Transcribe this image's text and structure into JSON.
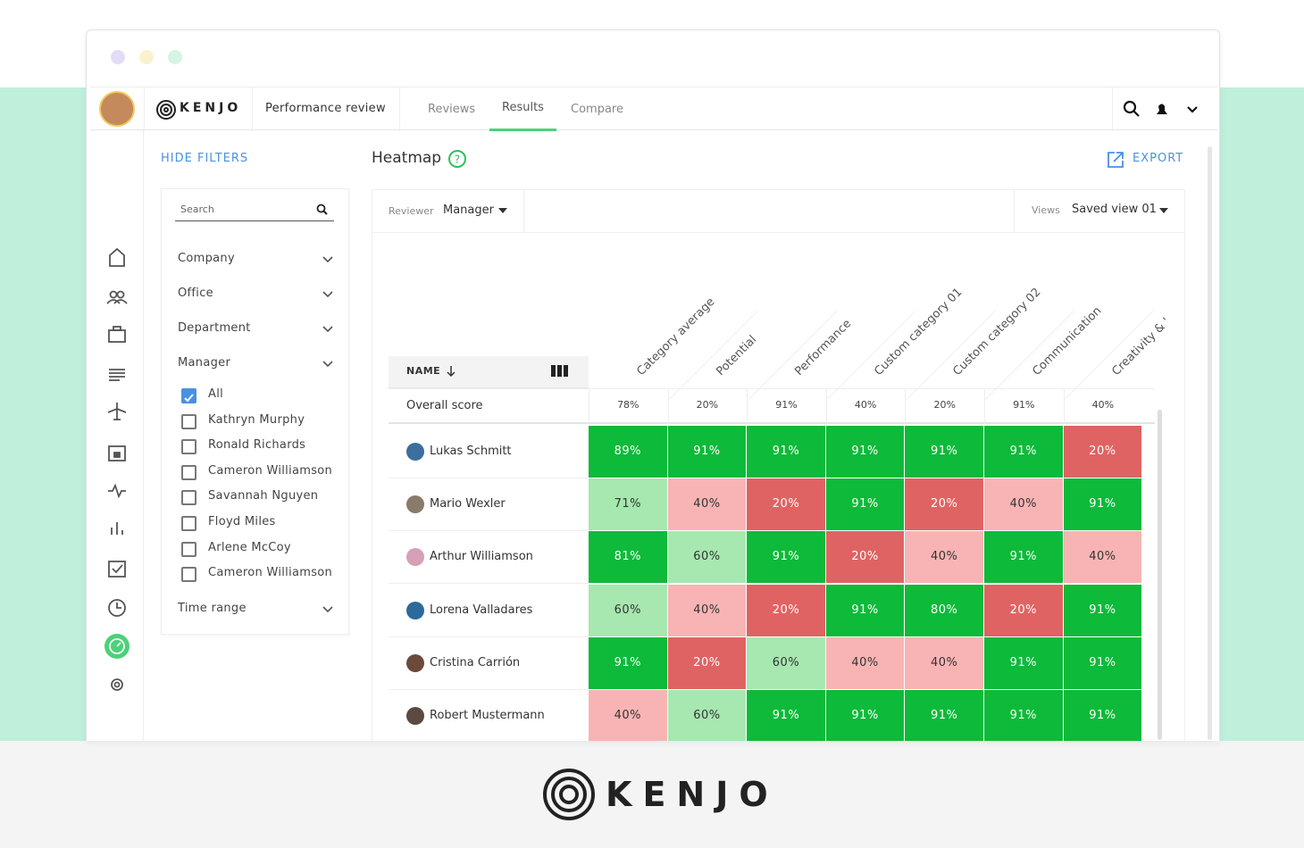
{
  "header": {
    "brand": "KENJO",
    "section": "Performance review",
    "tabs": [
      "Reviews",
      "Results",
      "Compare"
    ],
    "active_tab": 1
  },
  "filters": {
    "toggle": "HIDE FILTERS",
    "search": "Search",
    "groups": [
      "Company",
      "Office",
      "Department",
      "Manager"
    ],
    "manager_options": [
      {
        "label": "All",
        "checked": true
      },
      {
        "label": "Kathryn Murphy",
        "checked": false
      },
      {
        "label": "Ronald Richards",
        "checked": false
      },
      {
        "label": "Cameron Williamson",
        "checked": false
      },
      {
        "label": "Savannah Nguyen",
        "checked": false
      },
      {
        "label": "Floyd Miles",
        "checked": false
      },
      {
        "label": "Arlene McCoy",
        "checked": false
      },
      {
        "label": "Cameron Williamson",
        "checked": false
      }
    ],
    "time_range": "Time range"
  },
  "heatmap": {
    "title": "Heatmap",
    "export": "EXPORT",
    "reviewer_label": "Reviewer",
    "reviewer": "Manager",
    "views_label": "Views",
    "view": "Saved view 01",
    "name_header": "NAME",
    "columns": [
      "Category average",
      "Potential",
      "Performance",
      "Custom category 01",
      "Custom category 02",
      "Communication"
    ],
    "clipped_column": "Creativity & '",
    "overall": {
      "label": "Overall score",
      "values": [
        "78%",
        "20%",
        "91%",
        "40%",
        "20%",
        "91%",
        "40%"
      ]
    },
    "rows": [
      {
        "name": "Lukas Schmitt",
        "values": [
          "89%",
          "91%",
          "91%",
          "91%",
          "91%",
          "91%",
          "20%"
        ],
        "colors": [
          "#0dba39",
          "#0dba39",
          "#0dba39",
          "#0dba39",
          "#0dba39",
          "#0dba39",
          "#e06363"
        ]
      },
      {
        "name": "Mario Wexler",
        "values": [
          "71%",
          "40%",
          "20%",
          "91%",
          "20%",
          "40%",
          "91%"
        ],
        "colors": [
          "#a6e8b0",
          "#f8b4b4",
          "#e06363",
          "#0dba39",
          "#e06363",
          "#f8b4b4",
          "#0dba39"
        ]
      },
      {
        "name": "Arthur Williamson",
        "values": [
          "81%",
          "60%",
          "91%",
          "20%",
          "40%",
          "91%",
          "40%"
        ],
        "colors": [
          "#0dba39",
          "#a6e8b0",
          "#0dba39",
          "#e06363",
          "#f8b4b4",
          "#0dba39",
          "#f8b4b4"
        ]
      },
      {
        "name": "Lorena Valladares",
        "values": [
          "60%",
          "40%",
          "20%",
          "91%",
          "80%",
          "20%",
          "91%"
        ],
        "colors": [
          "#a6e8b0",
          "#f8b4b4",
          "#e06363",
          "#0dba39",
          "#0dba39",
          "#e06363",
          "#0dba39"
        ]
      },
      {
        "name": "Cristina Carrión",
        "values": [
          "91%",
          "20%",
          "60%",
          "40%",
          "40%",
          "91%",
          "91%"
        ],
        "colors": [
          "#0dba39",
          "#e06363",
          "#a6e8b0",
          "#f8b4b4",
          "#f8b4b4",
          "#0dba39",
          "#0dba39"
        ]
      },
      {
        "name": "Robert Mustermann",
        "values": [
          "40%",
          "60%",
          "91%",
          "91%",
          "91%",
          "91%",
          "91%"
        ],
        "colors": [
          "#f8b4b4",
          "#a6e8b0",
          "#0dba39",
          "#0dba39",
          "#0dba39",
          "#0dba39",
          "#0dba39"
        ]
      }
    ]
  },
  "footer": {
    "brand": "KENJO"
  }
}
